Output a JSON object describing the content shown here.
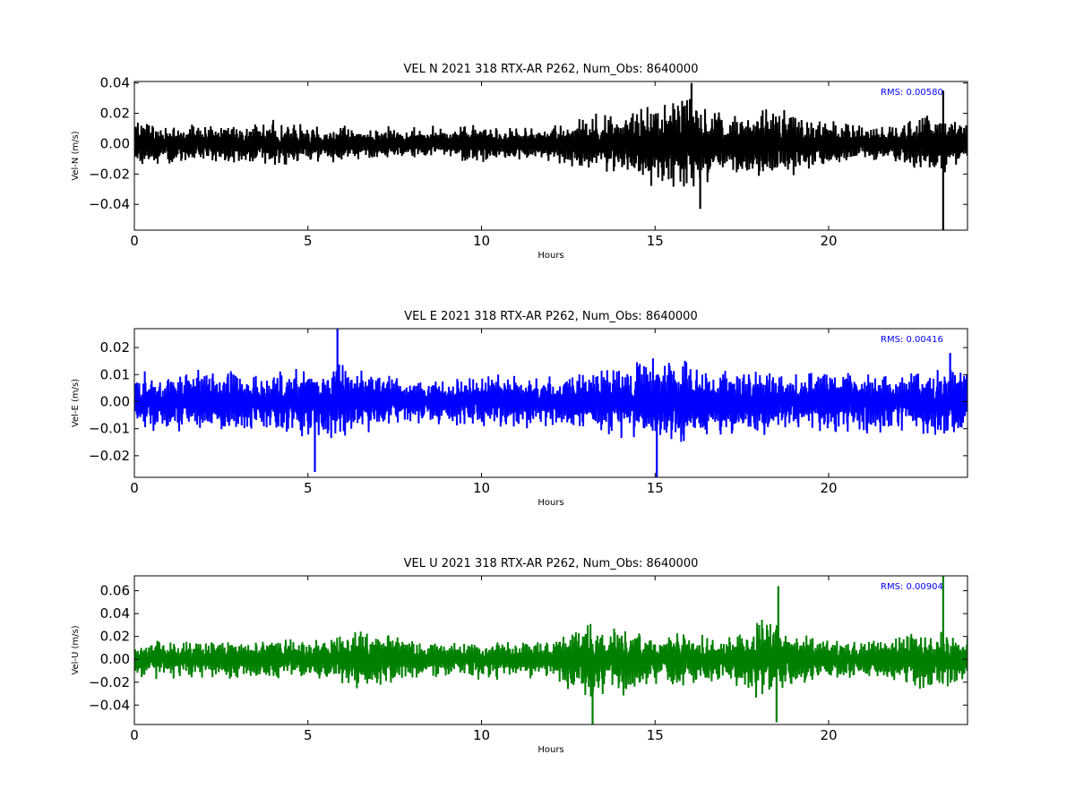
{
  "chart_data": [
    {
      "type": "line",
      "title": "VEL N 2021 318 RTX-AR  P262, Num_Obs: 8640000",
      "xlabel": "Hours",
      "ylabel": "Vel-N (m/s)",
      "xlim": [
        0,
        24
      ],
      "ylim": [
        -0.057,
        0.041
      ],
      "xticks": [
        0,
        5,
        10,
        15,
        20
      ],
      "yticks": [
        -0.04,
        -0.02,
        0.0,
        0.02,
        0.04
      ],
      "ytick_labels": [
        "−0.04",
        "−0.02",
        "0.00",
        "0.02",
        "0.04"
      ],
      "color": "#000000",
      "rms_label": "RMS:  0.00580",
      "rms_color": "#0000ff",
      "envelope": {
        "hours": [
          0,
          1,
          2,
          3,
          4,
          5,
          6,
          7,
          8,
          9,
          10,
          11,
          12,
          13,
          14,
          15,
          16,
          17,
          18,
          19,
          20,
          21,
          22,
          23,
          24
        ],
        "upper": [
          0.018,
          0.016,
          0.014,
          0.013,
          0.016,
          0.015,
          0.013,
          0.012,
          0.011,
          0.013,
          0.014,
          0.012,
          0.012,
          0.022,
          0.02,
          0.03,
          0.036,
          0.02,
          0.026,
          0.022,
          0.016,
          0.013,
          0.014,
          0.022,
          0.016
        ],
        "lower": [
          -0.017,
          -0.015,
          -0.013,
          -0.014,
          -0.015,
          -0.014,
          -0.012,
          -0.011,
          -0.01,
          -0.012,
          -0.013,
          -0.012,
          -0.012,
          -0.022,
          -0.02,
          -0.032,
          -0.036,
          -0.02,
          -0.026,
          -0.022,
          -0.016,
          -0.013,
          -0.014,
          -0.024,
          -0.017
        ]
      },
      "spikes": [
        {
          "hour": 23.3,
          "value": -0.057
        },
        {
          "hour": 23.3,
          "value": 0.035
        },
        {
          "hour": 16.05,
          "value": 0.04
        },
        {
          "hour": 16.3,
          "value": -0.043
        }
      ]
    },
    {
      "type": "line",
      "title": "VEL E 2021 318 RTX-AR  P262, Num_Obs: 8640000",
      "xlabel": "Hours",
      "ylabel": "Vel-E (m/s)",
      "xlim": [
        0,
        24
      ],
      "ylim": [
        -0.028,
        0.027
      ],
      "xticks": [
        0,
        5,
        10,
        15,
        20
      ],
      "yticks": [
        -0.02,
        -0.01,
        0.0,
        0.01,
        0.02
      ],
      "ytick_labels": [
        "−0.02",
        "−0.01",
        "0.00",
        "0.01",
        "0.02"
      ],
      "color": "#0000ff",
      "rms_label": "RMS:  0.00416",
      "rms_color": "#0000ff",
      "envelope": {
        "hours": [
          0,
          1,
          2,
          3,
          4,
          5,
          6,
          7,
          8,
          9,
          10,
          11,
          12,
          13,
          14,
          15,
          16,
          17,
          18,
          19,
          20,
          21,
          22,
          23,
          24
        ],
        "upper": [
          0.011,
          0.012,
          0.013,
          0.012,
          0.011,
          0.014,
          0.016,
          0.011,
          0.008,
          0.01,
          0.011,
          0.011,
          0.01,
          0.011,
          0.014,
          0.017,
          0.016,
          0.012,
          0.013,
          0.012,
          0.013,
          0.012,
          0.012,
          0.014,
          0.013
        ],
        "lower": [
          -0.011,
          -0.012,
          -0.013,
          -0.012,
          -0.011,
          -0.014,
          -0.016,
          -0.011,
          -0.008,
          -0.01,
          -0.011,
          -0.011,
          -0.01,
          -0.011,
          -0.014,
          -0.017,
          -0.016,
          -0.012,
          -0.013,
          -0.012,
          -0.013,
          -0.012,
          -0.012,
          -0.014,
          -0.013
        ]
      },
      "spikes": [
        {
          "hour": 5.85,
          "value": 0.027
        },
        {
          "hour": 5.2,
          "value": -0.026
        },
        {
          "hour": 15.05,
          "value": -0.028
        },
        {
          "hour": 23.5,
          "value": 0.018
        }
      ]
    },
    {
      "type": "line",
      "title": "VEL U 2021 318 RTX-AR  P262, Num_Obs: 8640000",
      "xlabel": "Hours",
      "ylabel": "Vel-U (m/s)",
      "xlim": [
        0,
        24
      ],
      "ylim": [
        -0.057,
        0.073
      ],
      "xticks": [
        0,
        5,
        10,
        15,
        20
      ],
      "yticks": [
        -0.04,
        -0.02,
        0.0,
        0.02,
        0.04,
        0.06
      ],
      "ytick_labels": [
        "−0.04",
        "−0.02",
        "0.00",
        "0.02",
        "0.04",
        "0.06"
      ],
      "color": "#008000",
      "rms_label": "RMS:  0.00904",
      "rms_color": "#0000ff",
      "envelope": {
        "hours": [
          0,
          1,
          2,
          3,
          4,
          5,
          6,
          7,
          8,
          9,
          10,
          11,
          12,
          13,
          14,
          15,
          16,
          17,
          18,
          19,
          20,
          21,
          22,
          23,
          24
        ],
        "upper": [
          0.02,
          0.018,
          0.017,
          0.018,
          0.024,
          0.015,
          0.026,
          0.028,
          0.018,
          0.016,
          0.02,
          0.018,
          0.018,
          0.035,
          0.032,
          0.022,
          0.032,
          0.02,
          0.04,
          0.024,
          0.02,
          0.016,
          0.024,
          0.026,
          0.022
        ],
        "lower": [
          -0.02,
          -0.018,
          -0.017,
          -0.018,
          -0.026,
          -0.015,
          -0.026,
          -0.028,
          -0.018,
          -0.016,
          -0.02,
          -0.018,
          -0.018,
          -0.036,
          -0.034,
          -0.024,
          -0.032,
          -0.02,
          -0.042,
          -0.024,
          -0.02,
          -0.016,
          -0.024,
          -0.028,
          -0.022
        ]
      },
      "spikes": [
        {
          "hour": 23.3,
          "value": 0.073
        },
        {
          "hour": 13.2,
          "value": -0.057
        },
        {
          "hour": 18.5,
          "value": -0.055
        },
        {
          "hour": 18.55,
          "value": 0.064
        }
      ]
    }
  ]
}
